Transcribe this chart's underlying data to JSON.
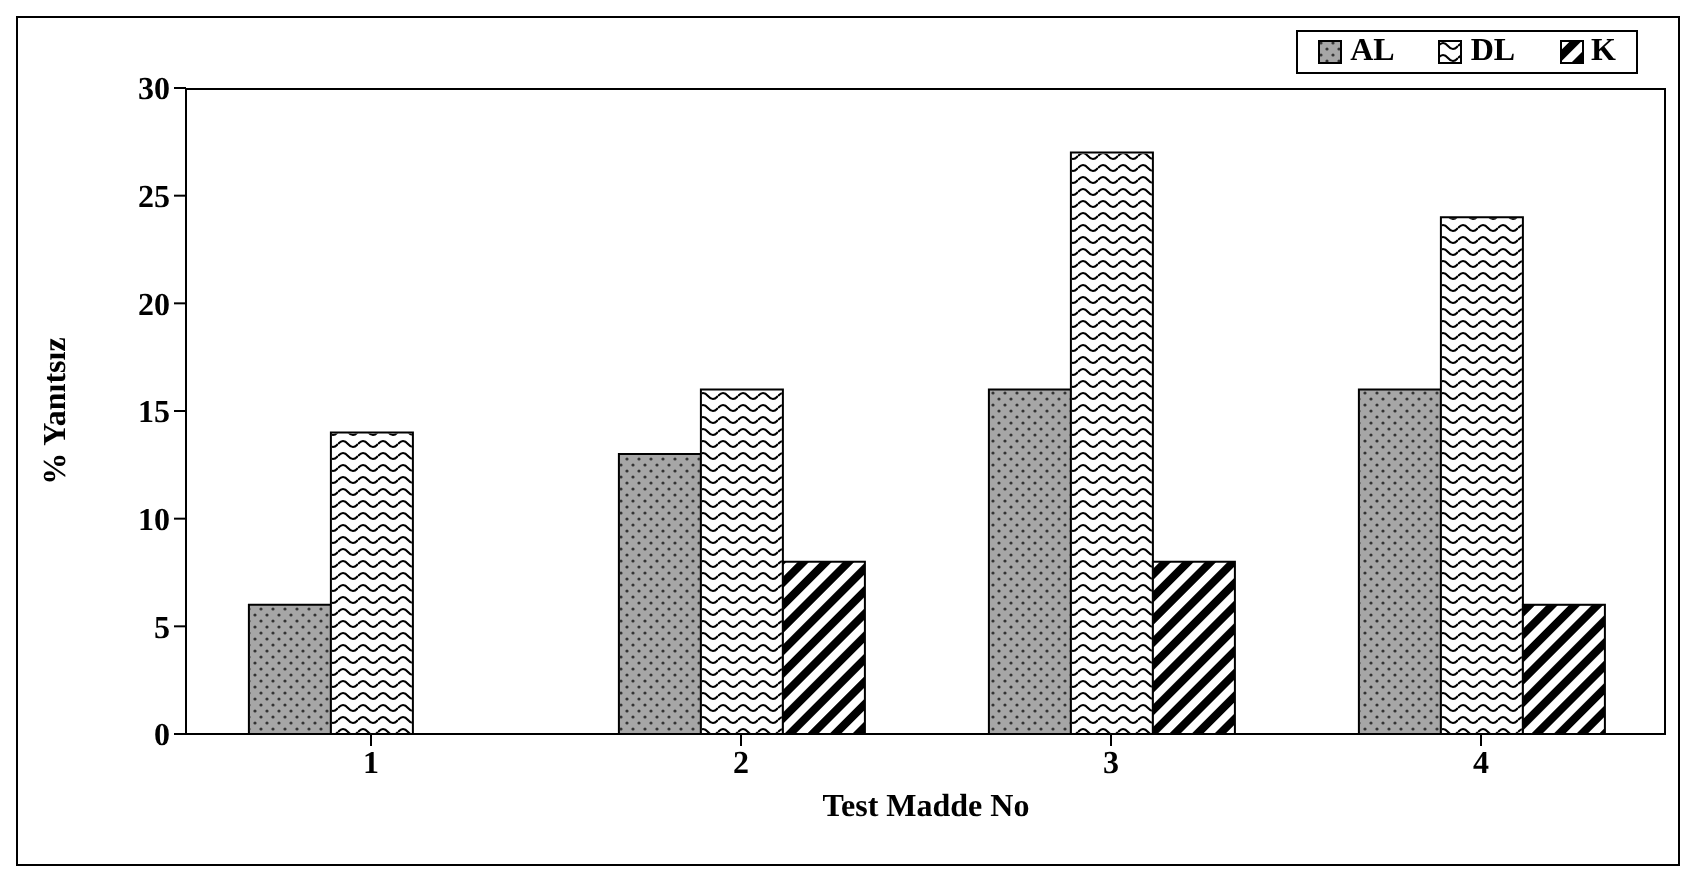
{
  "chart_data": {
    "type": "bar",
    "xlabel": "Test Madde No",
    "ylabel": "% Yanıtsız",
    "categories": [
      "1",
      "2",
      "3",
      "4"
    ],
    "series": [
      {
        "name": "AL",
        "color": "#a6a6a6",
        "values": [
          6,
          13,
          16,
          16
        ]
      },
      {
        "name": "DL",
        "color": "#ffffff",
        "values": [
          14,
          16,
          27,
          24
        ]
      },
      {
        "name": "K",
        "color": "#000000",
        "values": [
          null,
          8,
          8,
          6
        ]
      }
    ],
    "ylim": [
      0,
      30
    ],
    "yticks": [
      0,
      5,
      10,
      15,
      20,
      25,
      30
    ],
    "legend": "top right"
  }
}
